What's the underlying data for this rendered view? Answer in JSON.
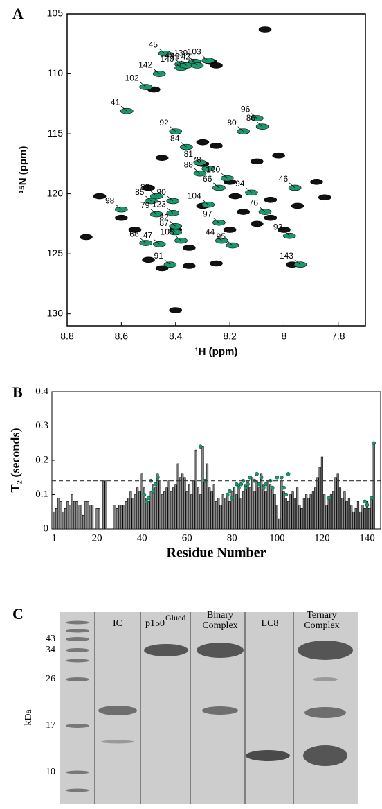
{
  "chart_data": [
    {
      "type": "scatter",
      "panel_label": "A",
      "xlabel": "¹H (ppm)",
      "ylabel": "¹⁵N (ppm)",
      "xlim": [
        8.8,
        7.7
      ],
      "xticks": [
        8.8,
        8.6,
        8.4,
        8.2,
        8,
        7.8
      ],
      "ylim": [
        105,
        131
      ],
      "yticks": [
        105,
        110,
        115,
        120,
        125,
        130
      ],
      "series": [
        {
          "color": "#111111",
          "x": [
            8.07,
            8.68,
            8.73,
            8.4,
            7.88,
            7.85,
            8.27,
            8.25,
            8.48,
            8.02,
            8.1,
            8.3,
            8.25,
            8.45,
            8.5,
            8.6,
            8.3,
            8.18,
            8.05,
            7.95,
            8.1,
            8.2,
            8.35,
            8.5,
            8.45,
            8.25,
            8.35,
            8.05,
            8.15,
            8.0,
            7.97,
            8.4,
            8.55,
            8.3,
            8.2
          ],
          "y": [
            106.3,
            120.2,
            123.6,
            129.7,
            119.0,
            120.3,
            109.0,
            109.3,
            111.3,
            116.8,
            117.3,
            115.7,
            116.0,
            117.0,
            119.5,
            122.0,
            121.0,
            120.2,
            120.5,
            121.0,
            122.5,
            123.0,
            124.5,
            125.5,
            126.2,
            125.8,
            126.0,
            122.0,
            121.5,
            123.0,
            125.9,
            123.0,
            123.0,
            117.5,
            119.0
          ]
        },
        {
          "color": "#1a9a6c",
          "labels": [
            "45",
            "43",
            "139",
            "140",
            "99",
            "42",
            "103",
            "142",
            "102",
            "41",
            "92",
            "96",
            "86",
            "80",
            "84",
            "81",
            "78",
            "88",
            "100",
            "66",
            "94",
            "46",
            "90",
            "83",
            "104",
            "85",
            "98",
            "79",
            "123",
            "76",
            "97",
            "82",
            "87",
            "44",
            "105",
            "93",
            "68",
            "47",
            "95",
            "91",
            "143"
          ],
          "x": [
            8.44,
            8.38,
            8.33,
            8.38,
            8.36,
            8.32,
            8.28,
            8.46,
            8.51,
            8.58,
            8.4,
            8.1,
            8.08,
            8.15,
            8.36,
            8.31,
            8.28,
            8.31,
            8.21,
            8.24,
            8.12,
            7.96,
            8.41,
            8.47,
            8.28,
            8.49,
            8.6,
            8.47,
            8.41,
            8.07,
            8.24,
            8.4,
            8.4,
            8.23,
            8.38,
            7.98,
            8.51,
            8.46,
            8.19,
            8.42,
            7.94
          ],
          "y": [
            108.3,
            109.2,
            109.0,
            109.5,
            109.3,
            109.3,
            108.9,
            110.0,
            111.1,
            113.1,
            114.8,
            113.7,
            114.4,
            114.8,
            116.1,
            117.4,
            117.9,
            118.3,
            118.7,
            119.5,
            119.9,
            119.5,
            120.6,
            120.2,
            120.9,
            120.6,
            121.3,
            121.7,
            121.6,
            121.5,
            122.4,
            122.7,
            123.2,
            123.9,
            123.9,
            123.5,
            124.1,
            124.2,
            124.3,
            125.9,
            125.9
          ]
        }
      ]
    },
    {
      "type": "bar",
      "panel_label": "B",
      "xlabel": "Residue Number",
      "ylabel": "T₂ (seconds)",
      "xlim": [
        0,
        146
      ],
      "xticks": [
        1,
        20,
        40,
        60,
        80,
        100,
        120,
        140
      ],
      "ylim": [
        0,
        0.4
      ],
      "yticks": [
        0,
        0.1,
        0.2,
        0.3,
        0.4
      ],
      "reference_line": 0.14,
      "series": [
        {
          "color": "#888888",
          "x": [
            1,
            2,
            3,
            4,
            5,
            6,
            7,
            8,
            9,
            10,
            11,
            12,
            13,
            14,
            15,
            16,
            17,
            18,
            19,
            20,
            21,
            22,
            23,
            24,
            25,
            26,
            27,
            28,
            29,
            30,
            31,
            32,
            33,
            34,
            35,
            36,
            37,
            38,
            39,
            40,
            41,
            42,
            43,
            44,
            45,
            46,
            47,
            48,
            49,
            50,
            51,
            52,
            53,
            54,
            55,
            56,
            57,
            58,
            59,
            60,
            61,
            62,
            63,
            64,
            65,
            66,
            67,
            68,
            69,
            70,
            71,
            72,
            73,
            74,
            75,
            76,
            77,
            78,
            79,
            80,
            81,
            82,
            83,
            84,
            85,
            86,
            87,
            88,
            89,
            90,
            91,
            92,
            93,
            94,
            95,
            96,
            97,
            98,
            99,
            100,
            101,
            102,
            103,
            104,
            105,
            106,
            107,
            108,
            109,
            110,
            111,
            112,
            113,
            114,
            115,
            116,
            117,
            118,
            119,
            120,
            121,
            122,
            123,
            124,
            125,
            126,
            127,
            128,
            129,
            130,
            131,
            132,
            133,
            134,
            135,
            136,
            137,
            138,
            139,
            140,
            141,
            142,
            143
          ],
          "values": [
            0.05,
            0.06,
            0.09,
            0.08,
            0.05,
            0.06,
            0.08,
            0.07,
            0.1,
            0.08,
            0.08,
            0.07,
            0.07,
            0.04,
            0.08,
            0.08,
            0.07,
            0.07,
            null,
            0.06,
            0.06,
            null,
            0.14,
            0.14,
            null,
            null,
            null,
            0.07,
            0.06,
            0.07,
            0.07,
            0.07,
            0.08,
            0.09,
            0.11,
            0.09,
            0.1,
            0.12,
            0.11,
            0.16,
            0.12,
            0.09,
            0.08,
            0.11,
            0.13,
            0.12,
            0.16,
            0.14,
            0.1,
            0.11,
            0.12,
            0.14,
            0.11,
            0.12,
            0.13,
            0.19,
            0.15,
            0.16,
            0.15,
            0.11,
            0.13,
            0.1,
            0.14,
            0.23,
            0.12,
            0.1,
            0.24,
            0.14,
            0.19,
            0.12,
            0.11,
            0.13,
            0.08,
            0.09,
            0.07,
            0.1,
            0.09,
            0.1,
            0.08,
            0.11,
            0.12,
            0.1,
            0.13,
            0.09,
            0.11,
            0.13,
            0.14,
            0.12,
            0.15,
            0.11,
            0.14,
            0.12,
            0.16,
            0.13,
            0.11,
            0.14,
            0.13,
            0.12,
            0.1,
            0.07,
            0.03,
            0.14,
            0.11,
            0.09,
            0.08,
            0.1,
            0.11,
            0.09,
            0.12,
            0.07,
            0.06,
            0.09,
            0.1,
            0.09,
            0.1,
            0.11,
            0.12,
            0.15,
            0.18,
            0.21,
            0.1,
            0.07,
            0.09,
            0.1,
            0.11,
            0.15,
            0.16,
            0.12,
            0.09,
            0.11,
            0.08,
            0.09,
            0.07,
            0.05,
            0.06,
            0.08,
            0.05,
            0.07,
            0.06,
            0.08,
            0.06,
            0.09,
            0.25
          ]
        },
        {
          "color": "#1a9a6c",
          "x": [
            41,
            42,
            43,
            44,
            45,
            46,
            47,
            66,
            68,
            78,
            79,
            80,
            82,
            83,
            84,
            85,
            86,
            87,
            88,
            90,
            91,
            92,
            93,
            94,
            95,
            97,
            98,
            100,
            102,
            103,
            104,
            105,
            123,
            139,
            140,
            142,
            143
          ],
          "values": [
            0.1,
            0.08,
            0.09,
            0.14,
            0.11,
            0.13,
            0.15,
            0.24,
            0.14,
            0.1,
            0.11,
            0.09,
            0.13,
            0.12,
            0.13,
            0.14,
            0.12,
            0.13,
            0.15,
            0.14,
            0.16,
            0.13,
            0.15,
            0.12,
            0.13,
            0.14,
            0.12,
            0.15,
            0.15,
            0.12,
            0.1,
            0.16,
            0.09,
            0.08,
            0.07,
            0.09,
            0.25
          ]
        }
      ]
    }
  ],
  "gel": {
    "panel_label": "C",
    "ylabel": "kDa",
    "markers": [
      43,
      34,
      26,
      17,
      10
    ],
    "lanes": [
      [
        "IC"
      ],
      {
        "base": "p150",
        "sup": "Glued"
      },
      [
        "Binary",
        "Complex"
      ],
      [
        "LC8"
      ],
      [
        "Ternary",
        "Complex"
      ]
    ]
  }
}
